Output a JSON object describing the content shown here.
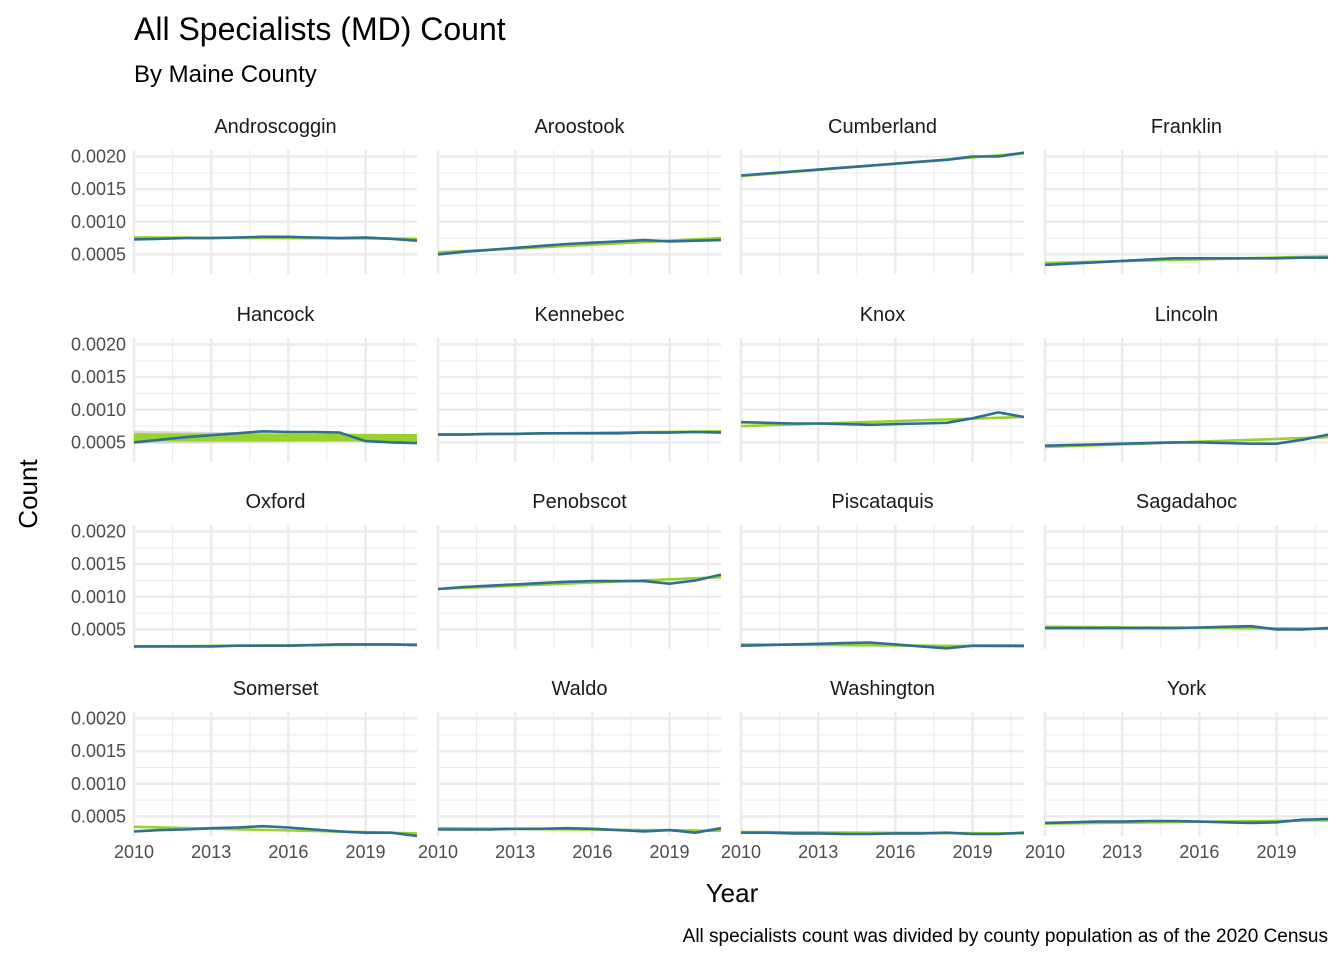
{
  "chart_data": {
    "type": "line",
    "title": "All Specialists (MD) Count",
    "subtitle": "By Maine County",
    "xlabel": "Year",
    "ylabel": "Count",
    "caption": "All specialists count was divided by county population as of the 2020 Census",
    "x_ticks": [
      2010,
      2013,
      2016,
      2019
    ],
    "y_ticks": [
      "0.0005",
      "0.0010",
      "0.0015",
      "0.0020"
    ],
    "y_tick_values": [
      0.0005,
      0.001,
      0.0015,
      0.002
    ],
    "xlim": [
      2010,
      2021
    ],
    "ylim": [
      0.0002,
      0.0021
    ],
    "grid": true,
    "legend": "none",
    "x": [
      2010,
      2011,
      2012,
      2013,
      2014,
      2015,
      2016,
      2017,
      2018,
      2019,
      2020,
      2021
    ],
    "colors": {
      "line": "#2f6f8f",
      "trend": "#9ad12e",
      "band": "#c8c8c8",
      "grid": "#ebebeb"
    },
    "panels": [
      {
        "name": "Androscoggin",
        "values": [
          0.00073,
          0.00074,
          0.00075,
          0.00075,
          0.00076,
          0.00077,
          0.00077,
          0.00076,
          0.00075,
          0.00076,
          0.00074,
          0.00071
        ],
        "trend": [
          0.00076,
          0.00074
        ]
      },
      {
        "name": "Aroostook",
        "values": [
          0.0005,
          0.00054,
          0.00057,
          0.0006,
          0.00063,
          0.00066,
          0.00068,
          0.0007,
          0.00072,
          0.0007,
          0.00071,
          0.00072
        ],
        "trend": [
          0.00053,
          0.00075
        ]
      },
      {
        "name": "Cumberland",
        "values": [
          0.00171,
          0.00174,
          0.00177,
          0.0018,
          0.00183,
          0.00186,
          0.00189,
          0.00192,
          0.00195,
          0.002,
          0.002,
          0.00206
        ],
        "trend": [
          0.0017,
          0.00205
        ]
      },
      {
        "name": "Franklin",
        "values": [
          0.00034,
          0.00036,
          0.00038,
          0.0004,
          0.00042,
          0.00044,
          0.00044,
          0.00044,
          0.00044,
          0.00044,
          0.00045,
          0.00045
        ],
        "trend": [
          0.00037,
          0.00047
        ]
      },
      {
        "name": "Hancock",
        "values": [
          0.0005,
          0.00054,
          0.00058,
          0.00061,
          0.00064,
          0.00067,
          0.00066,
          0.00066,
          0.00065,
          0.00052,
          0.0005,
          0.00049
        ],
        "trend": [
          0.00058,
          0.00057
        ],
        "band": true
      },
      {
        "name": "Kennebec",
        "values": [
          0.00062,
          0.00062,
          0.00063,
          0.00063,
          0.00064,
          0.00064,
          0.00064,
          0.00064,
          0.00065,
          0.00065,
          0.00066,
          0.00065
        ],
        "trend": [
          0.00062,
          0.00067
        ]
      },
      {
        "name": "Knox",
        "values": [
          0.00081,
          0.0008,
          0.00079,
          0.00079,
          0.00078,
          0.00077,
          0.00078,
          0.00079,
          0.0008,
          0.00087,
          0.00096,
          0.00089
        ],
        "trend": [
          0.00075,
          0.00089
        ]
      },
      {
        "name": "Lincoln",
        "values": [
          0.00045,
          0.00046,
          0.00047,
          0.00048,
          0.00049,
          0.0005,
          0.0005,
          0.00049,
          0.00048,
          0.00048,
          0.00054,
          0.00062
        ],
        "trend": [
          0.00043,
          0.00058
        ]
      },
      {
        "name": "Oxford",
        "values": [
          0.00024,
          0.00024,
          0.00024,
          0.00024,
          0.00025,
          0.00025,
          0.00025,
          0.00026,
          0.00027,
          0.00027,
          0.00027,
          0.00026
        ],
        "trend": [
          0.00024,
          0.00027
        ]
      },
      {
        "name": "Penobscot",
        "values": [
          0.00112,
          0.00115,
          0.00117,
          0.00119,
          0.00121,
          0.00123,
          0.00124,
          0.00124,
          0.00124,
          0.0012,
          0.00125,
          0.00134
        ],
        "trend": [
          0.00112,
          0.0013
        ]
      },
      {
        "name": "Piscataquis",
        "values": [
          0.00025,
          0.00026,
          0.00027,
          0.00028,
          0.00029,
          0.0003,
          0.00027,
          0.00024,
          0.00021,
          0.00025,
          0.00025,
          0.00025
        ],
        "trend": [
          0.00027,
          0.00024
        ]
      },
      {
        "name": "Sagadahoc",
        "values": [
          0.00052,
          0.00052,
          0.00052,
          0.00052,
          0.00052,
          0.00052,
          0.00053,
          0.00054,
          0.00055,
          0.0005,
          0.0005,
          0.00052
        ],
        "trend": [
          0.00054,
          0.00051
        ]
      },
      {
        "name": "Somerset",
        "values": [
          0.00027,
          0.00029,
          0.0003,
          0.00032,
          0.00033,
          0.00035,
          0.00033,
          0.0003,
          0.00027,
          0.00025,
          0.00025,
          0.0002
        ],
        "trend": [
          0.00034,
          0.00024
        ]
      },
      {
        "name": "Waldo",
        "values": [
          0.0003,
          0.0003,
          0.0003,
          0.00031,
          0.00031,
          0.00032,
          0.00031,
          0.00029,
          0.00027,
          0.00029,
          0.00025,
          0.00032
        ],
        "trend": [
          0.00032,
          0.00028
        ]
      },
      {
        "name": "Washington",
        "values": [
          0.00025,
          0.00025,
          0.00024,
          0.00024,
          0.00023,
          0.00023,
          0.00024,
          0.00024,
          0.00025,
          0.00023,
          0.00023,
          0.00025
        ],
        "trend": [
          0.00026,
          0.00024
        ]
      },
      {
        "name": "York",
        "values": [
          0.0004,
          0.00041,
          0.00042,
          0.00042,
          0.00043,
          0.00043,
          0.00042,
          0.00041,
          0.0004,
          0.00041,
          0.00045,
          0.00046
        ],
        "trend": [
          0.00039,
          0.00044
        ]
      }
    ]
  }
}
